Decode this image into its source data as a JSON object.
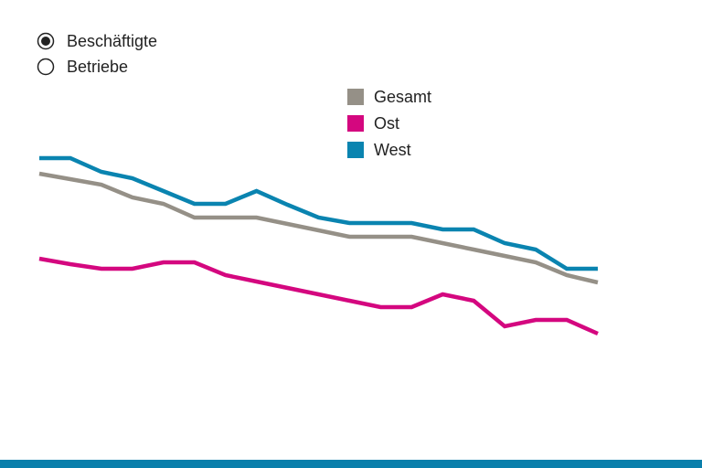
{
  "options": [
    {
      "label": "Beschäftigte",
      "selected": true
    },
    {
      "label": "Betriebe",
      "selected": false
    }
  ],
  "chart_data": {
    "type": "line",
    "categories": [
      null,
      null,
      null,
      null,
      null,
      null,
      null,
      null,
      null,
      null,
      null,
      null,
      null,
      null,
      null,
      null,
      null,
      null,
      null
    ],
    "ylim": [
      0,
      100
    ],
    "grid": false,
    "legend": "top",
    "series": [
      {
        "name": "Gesamt",
        "color": "#959087",
        "values": [
          72.5,
          71,
          69.5,
          66,
          64.25,
          60.5,
          60.5,
          60.5,
          58.75,
          57,
          55.25,
          55.25,
          55.25,
          53.5,
          51.75,
          50,
          48.25,
          44.75,
          42.75
        ]
      },
      {
        "name": "Ost",
        "color": "#d4077f",
        "values": [
          49.25,
          47.75,
          46.5,
          46.5,
          48.25,
          48.25,
          44.75,
          43,
          41.25,
          39.5,
          37.75,
          36,
          36,
          39.5,
          37.75,
          30.75,
          32.5,
          32.5,
          28.75
        ]
      },
      {
        "name": "West",
        "color": "#0a84b0",
        "values": [
          76.75,
          76.75,
          73,
          71.25,
          67.75,
          64.25,
          64.25,
          67.75,
          64,
          60.5,
          59,
          59,
          59,
          57.25,
          57.25,
          53.5,
          51.75,
          46.5,
          46.5
        ]
      }
    ]
  }
}
